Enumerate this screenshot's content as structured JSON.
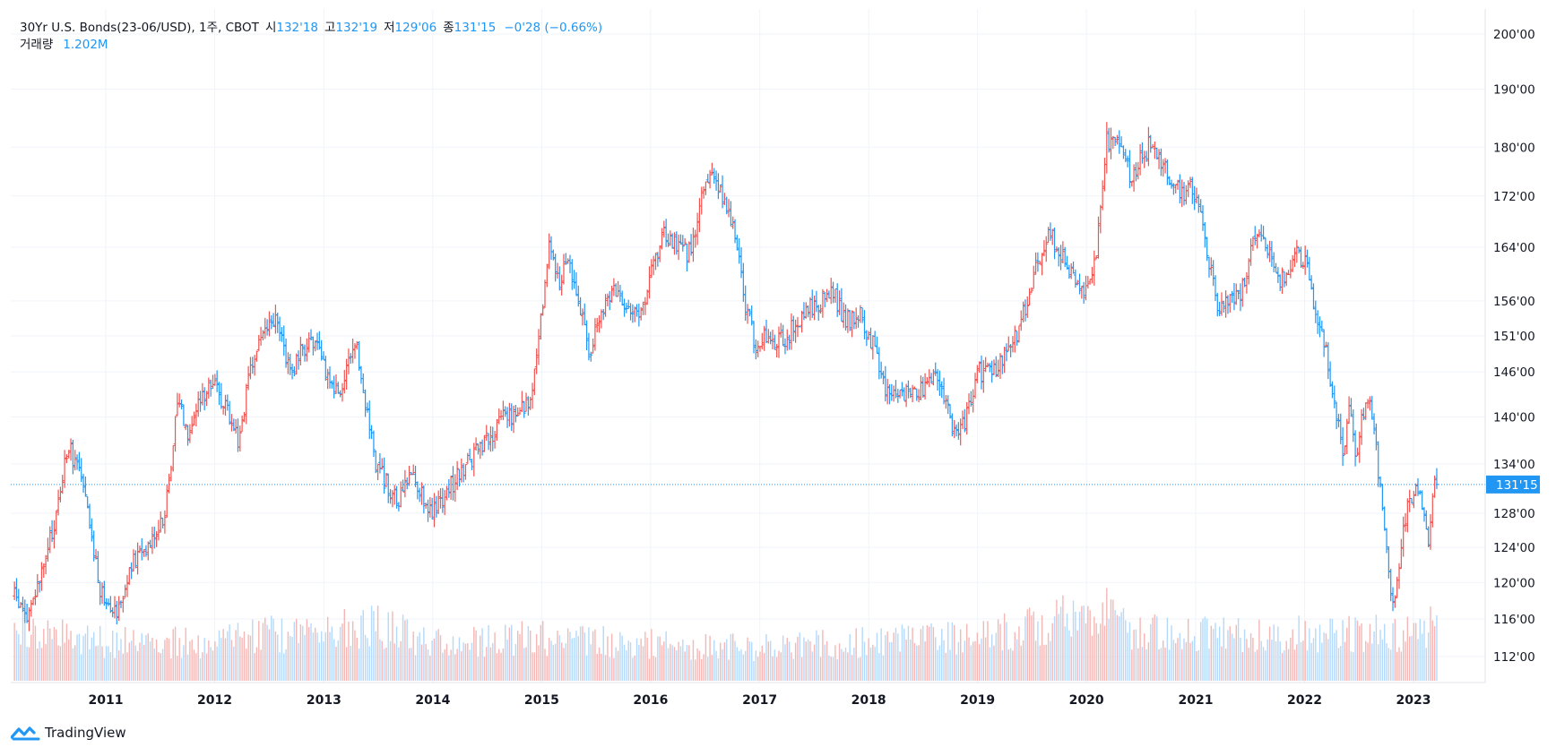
{
  "legend": {
    "symbol": "30Yr U.S. Bonds(23-06/USD), 1주, CBOT",
    "open_label": "시",
    "open_value": "132'18",
    "high_label": "고",
    "high_value": "132'19",
    "low_label": "저",
    "low_value": "129'06",
    "close_label": "종",
    "close_value": "131'15",
    "change": "−0'28 (−0.66%)",
    "volume_label": "거래량",
    "volume_value": "1.202M"
  },
  "price_badge": "131'15",
  "brand": "TradingView",
  "colors": {
    "up": "#ef5350",
    "down": "#2196f3",
    "badge": "#2196f3",
    "grid": "#f0f3fa"
  },
  "chart_data": {
    "type": "ohlc",
    "interval": "weekly",
    "scale": "log",
    "y_ticks": [
      "112'00",
      "116'00",
      "120'00",
      "124'00",
      "128'00",
      "134'00",
      "140'00",
      "146'00",
      "151'00",
      "156'00",
      "164'00",
      "172'00",
      "180'00",
      "190'00",
      "200'00"
    ],
    "x_ticks": [
      "2011",
      "2012",
      "2013",
      "2014",
      "2015",
      "2016",
      "2017",
      "2018",
      "2019",
      "2020",
      "2021",
      "2022",
      "2023"
    ],
    "last_price": 131.47,
    "price_path": [
      [
        "2010-03-01",
        118.5
      ],
      [
        "2010-04-15",
        116
      ],
      [
        "2010-06-01",
        121
      ],
      [
        "2010-07-15",
        127
      ],
      [
        "2010-08-25",
        136
      ],
      [
        "2010-10-01",
        134
      ],
      [
        "2010-11-15",
        125
      ],
      [
        "2010-12-15",
        119
      ],
      [
        "2011-02-10",
        117
      ],
      [
        "2011-04-01",
        122
      ],
      [
        "2011-06-20",
        126
      ],
      [
        "2011-07-20",
        128
      ],
      [
        "2011-09-01",
        143
      ],
      [
        "2011-10-01",
        138
      ],
      [
        "2011-12-15",
        145
      ],
      [
        "2012-02-15",
        141
      ],
      [
        "2012-03-20",
        137
      ],
      [
        "2012-05-01",
        146
      ],
      [
        "2012-06-01",
        151
      ],
      [
        "2012-07-24",
        153
      ],
      [
        "2012-09-15",
        146
      ],
      [
        "2012-11-15",
        151
      ],
      [
        "2013-01-10",
        146
      ],
      [
        "2013-02-15",
        143
      ],
      [
        "2013-04-20",
        149
      ],
      [
        "2013-06-25",
        134
      ],
      [
        "2013-09-05",
        129
      ],
      [
        "2013-10-20",
        133
      ],
      [
        "2013-12-31",
        128
      ],
      [
        "2014-03-15",
        132
      ],
      [
        "2014-05-15",
        135
      ],
      [
        "2014-07-15",
        137
      ],
      [
        "2014-08-29",
        141
      ],
      [
        "2014-10-01",
        140
      ],
      [
        "2014-12-01",
        143
      ],
      [
        "2015-01-30",
        165
      ],
      [
        "2015-03-01",
        159
      ],
      [
        "2015-03-31",
        163
      ],
      [
        "2015-05-01",
        156
      ],
      [
        "2015-06-10",
        149
      ],
      [
        "2015-08-25",
        158
      ],
      [
        "2015-10-01",
        156
      ],
      [
        "2015-12-01",
        154
      ],
      [
        "2016-02-10",
        166
      ],
      [
        "2016-04-01",
        164
      ],
      [
        "2016-05-15",
        163
      ],
      [
        "2016-07-08",
        176
      ],
      [
        "2016-08-20",
        173
      ],
      [
        "2016-10-01",
        168
      ],
      [
        "2016-11-15",
        155
      ],
      [
        "2016-12-15",
        150
      ],
      [
        "2017-02-01",
        151
      ],
      [
        "2017-03-20",
        150
      ],
      [
        "2017-04-20",
        152
      ],
      [
        "2017-06-15",
        155
      ],
      [
        "2017-09-07",
        157
      ],
      [
        "2017-10-15",
        153
      ],
      [
        "2017-12-01",
        154
      ],
      [
        "2018-01-15",
        150
      ],
      [
        "2018-02-20",
        144
      ],
      [
        "2018-05-15",
        143
      ],
      [
        "2018-08-20",
        145
      ],
      [
        "2018-10-15",
        138
      ],
      [
        "2018-11-15",
        139
      ],
      [
        "2019-01-03",
        146
      ],
      [
        "2019-03-01",
        146
      ],
      [
        "2019-05-01",
        150
      ],
      [
        "2019-06-15",
        156
      ],
      [
        "2019-08-28",
        167
      ],
      [
        "2019-10-15",
        162
      ],
      [
        "2019-12-15",
        157
      ],
      [
        "2020-01-31",
        162
      ],
      [
        "2020-03-09",
        181
      ],
      [
        "2020-04-20",
        180
      ],
      [
        "2020-06-01",
        175
      ],
      [
        "2020-08-05",
        181
      ],
      [
        "2020-09-15",
        177
      ],
      [
        "2020-11-15",
        172
      ],
      [
        "2020-12-20",
        173
      ],
      [
        "2021-01-20",
        168
      ],
      [
        "2021-03-18",
        154
      ],
      [
        "2021-04-15",
        156
      ],
      [
        "2021-06-01",
        157
      ],
      [
        "2021-07-20",
        166
      ],
      [
        "2021-09-01",
        164
      ],
      [
        "2021-10-15",
        159
      ],
      [
        "2021-12-01",
        163
      ],
      [
        "2022-01-05",
        162
      ],
      [
        "2022-02-01",
        156
      ],
      [
        "2022-03-20",
        148
      ],
      [
        "2022-04-15",
        140
      ],
      [
        "2022-05-10",
        136
      ],
      [
        "2022-06-01",
        141
      ],
      [
        "2022-06-20",
        135
      ],
      [
        "2022-08-05",
        144
      ],
      [
        "2022-09-15",
        130
      ],
      [
        "2022-10-20",
        118
      ],
      [
        "2022-11-01",
        119
      ],
      [
        "2022-12-10",
        129
      ],
      [
        "2023-01-18",
        131
      ],
      [
        "2023-02-20",
        124
      ],
      [
        "2023-03-10",
        133
      ],
      [
        "2023-03-24",
        131.5
      ]
    ],
    "volume_level": [
      [
        "2010-03-01",
        0.35
      ],
      [
        "2011-01-01",
        0.25
      ],
      [
        "2012-01-01",
        0.25
      ],
      [
        "2012-06-01",
        0.3
      ],
      [
        "2013-01-01",
        0.3
      ],
      [
        "2013-06-01",
        0.38
      ],
      [
        "2014-01-01",
        0.25
      ],
      [
        "2015-01-01",
        0.28
      ],
      [
        "2016-01-01",
        0.24
      ],
      [
        "2017-01-01",
        0.22
      ],
      [
        "2018-01-01",
        0.25
      ],
      [
        "2019-01-01",
        0.28
      ],
      [
        "2020-03-01",
        0.45
      ],
      [
        "2020-06-01",
        0.3
      ],
      [
        "2021-01-01",
        0.32
      ],
      [
        "2022-01-01",
        0.3
      ],
      [
        "2023-01-01",
        0.32
      ],
      [
        "2023-03-24",
        0.38
      ]
    ]
  }
}
